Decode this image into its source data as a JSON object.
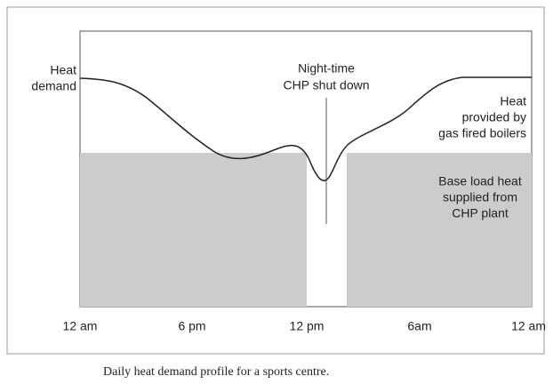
{
  "labels": {
    "heat_demand": [
      "Heat",
      "demand"
    ],
    "shutdown": [
      "Night-time",
      "CHP shut down"
    ],
    "boilers": [
      "Heat",
      "provided by",
      "gas fired boilers"
    ],
    "base_load": [
      "Base load heat",
      "supplied from",
      "CHP plant"
    ]
  },
  "x_axis": [
    "12 am",
    "6 pm",
    "12 pm",
    "6am",
    "12 am"
  ],
  "caption": "Daily heat demand profile for a sports centre."
}
